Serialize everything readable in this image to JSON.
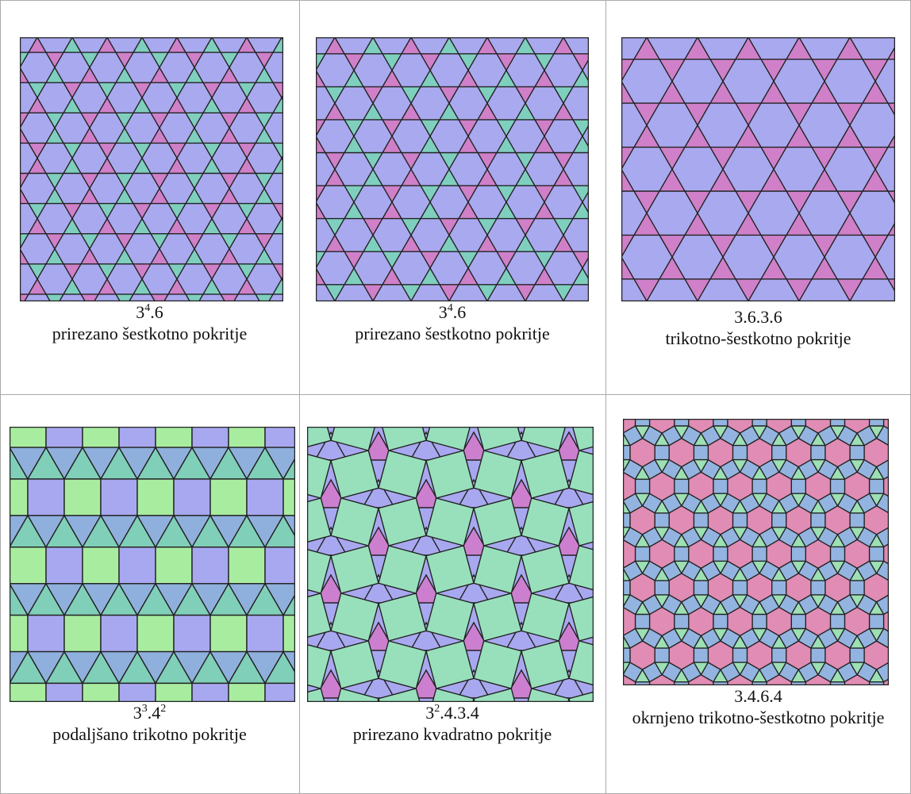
{
  "table": {
    "cells": [
      {
        "notation": [
          "3",
          "4",
          ".6"
        ],
        "name": "prirezano šestkotno pokritje"
      },
      {
        "notation": [
          "3",
          "4",
          ".6"
        ],
        "name": "prirezano šestkotno pokritje"
      },
      {
        "notation": [
          "3.6.3.6"
        ],
        "name": "trikotno-šestkotno pokritje"
      },
      {
        "notation": [
          "3",
          "3",
          ".4",
          "2"
        ],
        "name": "podaljšano trikotno pokritje"
      },
      {
        "notation": [
          "3",
          "2",
          ".4.3.4"
        ],
        "name": "prirezano kvadratno pokritje"
      },
      {
        "notation": [
          "3.4.6.4"
        ],
        "name": "okrnjeno trikotno-šestkotno pokritje"
      }
    ]
  }
}
